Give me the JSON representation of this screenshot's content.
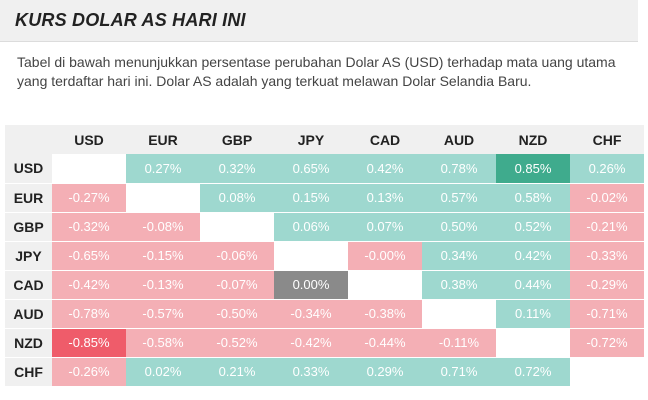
{
  "header": {
    "title": "KURS DOLAR AS HARI INI"
  },
  "description": "Tabel di bawah menunjukkan persentase perubahan Dolar AS (USD) terhadap mata uang utama yang terdaftar hari ini. Dolar AS adalah yang terkuat melawan Dolar Selandia Baru.",
  "table": {
    "columns": [
      "USD",
      "EUR",
      "GBP",
      "JPY",
      "CAD",
      "AUD",
      "NZD",
      "CHF"
    ],
    "rows": [
      {
        "label": "USD",
        "cells": [
          "",
          "0.27%",
          "0.32%",
          "0.65%",
          "0.42%",
          "0.78%",
          "0.85%",
          "0.26%"
        ]
      },
      {
        "label": "EUR",
        "cells": [
          "-0.27%",
          "",
          "0.08%",
          "0.15%",
          "0.13%",
          "0.57%",
          "0.58%",
          "-0.02%"
        ]
      },
      {
        "label": "GBP",
        "cells": [
          "-0.32%",
          "-0.08%",
          "",
          "0.06%",
          "0.07%",
          "0.50%",
          "0.52%",
          "-0.21%"
        ]
      },
      {
        "label": "JPY",
        "cells": [
          "-0.65%",
          "-0.15%",
          "-0.06%",
          "",
          "-0.00%",
          "0.34%",
          "0.42%",
          "-0.33%"
        ]
      },
      {
        "label": "CAD",
        "cells": [
          "-0.42%",
          "-0.13%",
          "-0.07%",
          "0.00%",
          "",
          "0.38%",
          "0.44%",
          "-0.29%"
        ]
      },
      {
        "label": "AUD",
        "cells": [
          "-0.78%",
          "-0.57%",
          "-0.50%",
          "-0.34%",
          "-0.38%",
          "",
          "0.11%",
          "-0.71%"
        ]
      },
      {
        "label": "NZD",
        "cells": [
          "-0.85%",
          "-0.58%",
          "-0.52%",
          "-0.42%",
          "-0.44%",
          "-0.11%",
          "",
          "-0.72%"
        ]
      },
      {
        "label": "CHF",
        "cells": [
          "-0.26%",
          "0.02%",
          "0.21%",
          "0.33%",
          "0.29%",
          "0.71%",
          "0.72%",
          ""
        ]
      }
    ]
  },
  "colors": {
    "positive": "#9ed8cf",
    "negative": "#f4afb5",
    "neutral": "#8a8a8a",
    "strongest_positive": "#3fab8d",
    "strongest_negative": "#ef5c6a"
  }
}
